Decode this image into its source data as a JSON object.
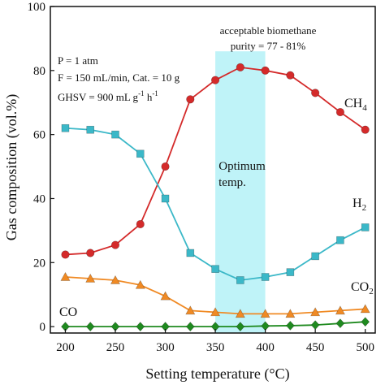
{
  "chart_data": {
    "type": "line",
    "title": "",
    "xlabel": "Setting temperature (°C)",
    "ylabel": "Gas composition (vol.%)",
    "xlim": [
      185,
      510
    ],
    "ylim": [
      -2,
      100
    ],
    "xticks": [
      200,
      250,
      300,
      350,
      400,
      450,
      500
    ],
    "yticks": [
      0,
      20,
      40,
      60,
      80,
      100
    ],
    "grid": false,
    "x": [
      200,
      225,
      250,
      275,
      300,
      325,
      350,
      375,
      400,
      425,
      450,
      475,
      500
    ],
    "series": [
      {
        "name": "CH4",
        "color": "#d42a2a",
        "marker": "circle",
        "values": [
          22.5,
          23,
          25.5,
          32,
          50,
          71,
          77,
          81,
          80,
          78.5,
          73,
          67,
          61.5
        ]
      },
      {
        "name": "H2",
        "color": "#3bb8c8",
        "marker": "square",
        "values": [
          62,
          61.5,
          60,
          54,
          40,
          23,
          18,
          14.5,
          15.5,
          17,
          22,
          27,
          31
        ]
      },
      {
        "name": "CO2",
        "color": "#f08a24",
        "marker": "triangle",
        "values": [
          15.5,
          15,
          14.5,
          13,
          9.5,
          5,
          4.5,
          4,
          4,
          4,
          4.5,
          5,
          5.5
        ]
      },
      {
        "name": "CO",
        "color": "#1f8a1f",
        "marker": "diamond",
        "values": [
          0,
          0,
          0,
          0,
          0,
          0,
          0,
          0,
          0.2,
          0.3,
          0.5,
          1,
          1.5
        ]
      }
    ],
    "shaded_region": {
      "x_from": 350,
      "x_to": 400,
      "color": "#bff3f8",
      "label_line1": "Optimum",
      "label_line2": "temp."
    },
    "annotations": {
      "conditions": {
        "p": "P = 1 atm",
        "f": "F = 150 mL/min, Cat. = 10 g",
        "ghsv_base": "GHSV = 900 mL g",
        "ghsv_exp1": "-1",
        "ghsv_mid": " h",
        "ghsv_exp2": "-1"
      },
      "biomethane_line1": "acceptable biomethane",
      "biomethane_line2": "purity = 77 - 81%",
      "ch4_base": "CH",
      "ch4_sub": "4",
      "h2_base": "H",
      "h2_sub": "2",
      "co2_base": "CO",
      "co2_sub": "2",
      "co": "CO"
    }
  }
}
